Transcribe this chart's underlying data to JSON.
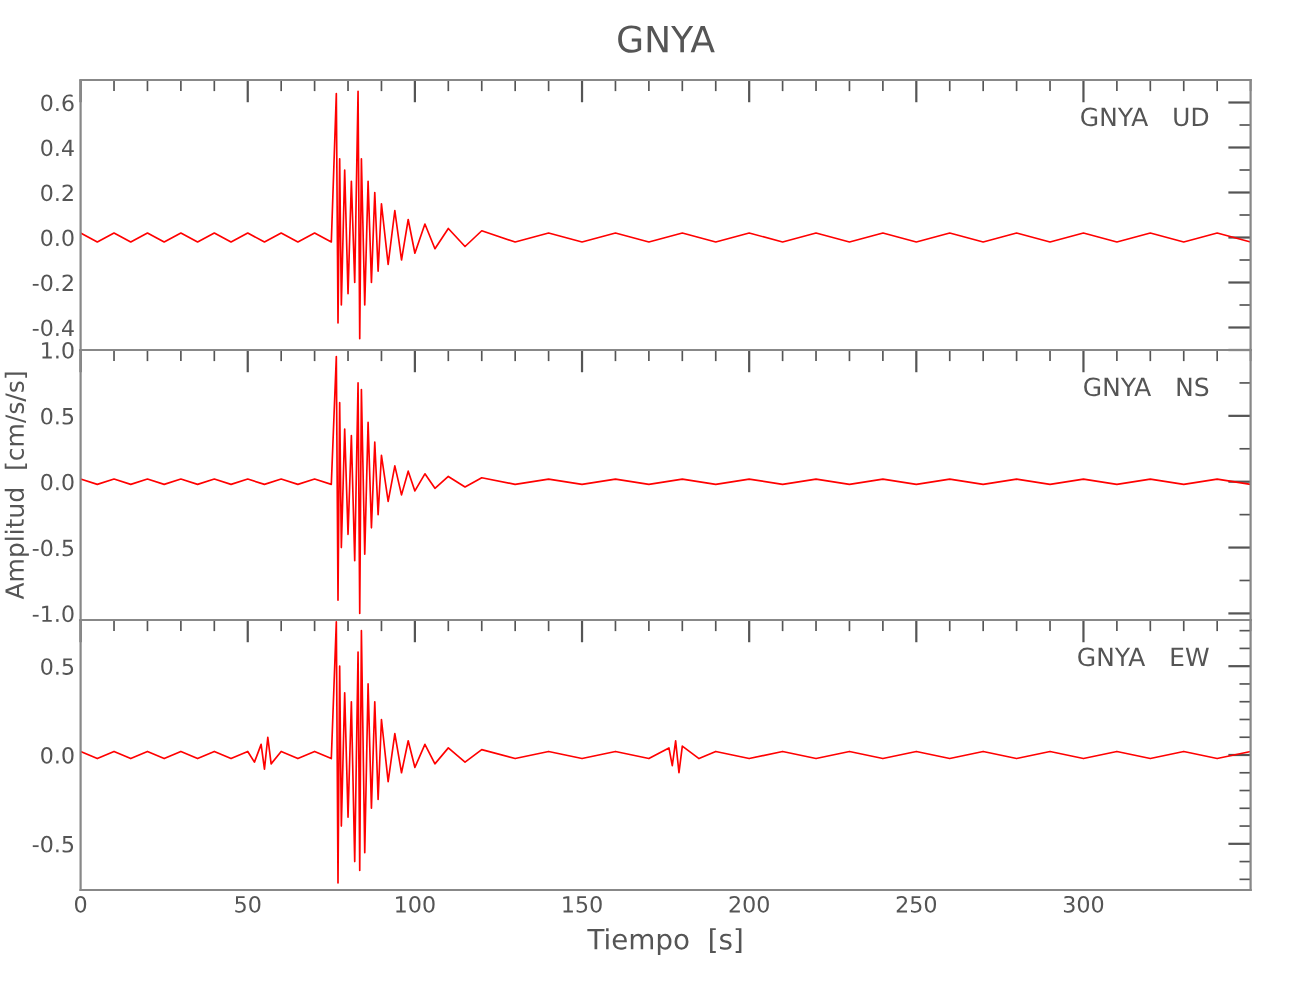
{
  "chart_data": [
    {
      "type": "line",
      "title": "GNYA",
      "annotations": [
        "GNYA   UD"
      ],
      "xlim": [
        0,
        350
      ],
      "xticks": [
        0,
        50,
        100,
        150,
        200,
        250,
        300
      ],
      "ylim": [
        -0.5,
        0.7
      ],
      "yticks": [
        -0.4,
        -0.2,
        {
          "value": 0,
          "label": "0.0"
        },
        0.2,
        0.4,
        0.6
      ],
      "tick_labels": "y",
      "x": [
        0,
        5,
        10,
        15,
        20,
        25,
        30,
        35,
        40,
        45,
        50,
        55,
        60,
        65,
        70,
        75,
        76.5,
        77,
        77.5,
        78,
        79,
        80,
        81,
        82,
        83,
        83.5,
        84,
        85,
        86,
        87,
        88,
        89,
        90,
        92,
        94,
        96,
        98,
        100,
        103,
        106,
        110,
        115,
        120,
        130,
        140,
        150,
        160,
        170,
        180,
        190,
        200,
        210,
        220,
        230,
        240,
        250,
        260,
        270,
        280,
        290,
        300,
        310,
        320,
        330,
        340,
        350
      ],
      "series": [
        {
          "color": "#ff0000",
          "values": [
            0.02,
            -0.02,
            0.02,
            -0.02,
            0.02,
            -0.02,
            0.02,
            -0.02,
            0.02,
            -0.02,
            0.02,
            -0.02,
            0.02,
            -0.02,
            0.02,
            -0.02,
            0.64,
            -0.38,
            0.35,
            -0.3,
            0.3,
            -0.25,
            0.25,
            -0.2,
            0.65,
            -0.45,
            0.35,
            -0.3,
            0.25,
            -0.2,
            0.2,
            -0.15,
            0.15,
            -0.12,
            0.12,
            -0.1,
            0.08,
            -0.07,
            0.06,
            -0.05,
            0.04,
            -0.04,
            0.03,
            -0.02,
            0.02,
            -0.02,
            0.02,
            -0.02,
            0.02,
            -0.02,
            0.02,
            -0.02,
            0.02,
            -0.02,
            0.02,
            -0.02,
            0.02,
            -0.02,
            0.02,
            -0.02,
            0.02,
            -0.02,
            0.02,
            -0.02,
            0.02,
            -0.02
          ]
        }
      ]
    },
    {
      "type": "line",
      "ylabel": "Amplitud  [cm/s/s]",
      "annotations": [
        "GNYA   NS"
      ],
      "xlim": [
        0,
        350
      ],
      "xticks": [
        0,
        50,
        100,
        150,
        200,
        250,
        300
      ],
      "ylim": [
        -1.05,
        1.0
      ],
      "yticks": [
        {
          "value": -1,
          "label": "-1.0"
        },
        -0.5,
        {
          "value": 0,
          "label": "0.0"
        },
        0.5,
        {
          "value": 1,
          "label": "1.0"
        }
      ],
      "tick_labels": "y",
      "x": [
        0,
        5,
        10,
        15,
        20,
        25,
        30,
        35,
        40,
        45,
        50,
        55,
        60,
        65,
        70,
        75,
        76.5,
        77,
        77.5,
        78,
        79,
        80,
        81,
        82,
        83,
        83.5,
        84,
        85,
        86,
        87,
        88,
        89,
        90,
        92,
        94,
        96,
        98,
        100,
        103,
        106,
        110,
        115,
        120,
        130,
        140,
        150,
        160,
        170,
        180,
        190,
        200,
        210,
        220,
        230,
        240,
        250,
        260,
        270,
        280,
        290,
        300,
        310,
        320,
        330,
        340,
        350
      ],
      "series": [
        {
          "color": "#ff0000",
          "values": [
            0.02,
            -0.02,
            0.02,
            -0.02,
            0.02,
            -0.02,
            0.02,
            -0.02,
            0.02,
            -0.02,
            0.02,
            -0.02,
            0.02,
            -0.02,
            0.02,
            -0.02,
            0.95,
            -0.9,
            0.6,
            -0.5,
            0.4,
            -0.4,
            0.35,
            -0.6,
            0.75,
            -1.0,
            0.7,
            -0.55,
            0.45,
            -0.35,
            0.3,
            -0.25,
            0.2,
            -0.15,
            0.12,
            -0.1,
            0.08,
            -0.07,
            0.06,
            -0.05,
            0.04,
            -0.04,
            0.03,
            -0.02,
            0.02,
            -0.02,
            0.02,
            -0.02,
            0.02,
            -0.02,
            0.02,
            -0.02,
            0.02,
            -0.02,
            0.02,
            -0.02,
            0.02,
            -0.02,
            0.02,
            -0.02,
            0.02,
            -0.02,
            0.02,
            -0.02,
            0.02,
            -0.02
          ]
        }
      ]
    },
    {
      "type": "line",
      "xlabel": "Tiempo  [s]",
      "annotations": [
        "GNYA   EW"
      ],
      "xlim": [
        0,
        350
      ],
      "xticks": [
        0,
        50,
        100,
        150,
        200,
        250,
        300
      ],
      "ylim": [
        -0.76,
        0.76
      ],
      "yticks": [
        -0.5,
        {
          "value": 0,
          "label": "0.0"
        },
        0.5
      ],
      "x": [
        0,
        5,
        10,
        15,
        20,
        25,
        30,
        35,
        40,
        45,
        50,
        52,
        54,
        55,
        56,
        57,
        60,
        65,
        70,
        75,
        76.5,
        77,
        77.5,
        78,
        79,
        80,
        81,
        82,
        83,
        83.5,
        84,
        85,
        86,
        87,
        88,
        89,
        90,
        92,
        94,
        96,
        98,
        100,
        103,
        106,
        110,
        115,
        120,
        130,
        140,
        150,
        160,
        170,
        176,
        177,
        178,
        179,
        180,
        185,
        190,
        200,
        210,
        220,
        230,
        240,
        250,
        260,
        270,
        280,
        290,
        300,
        310,
        320,
        330,
        340,
        350
      ],
      "series": [
        {
          "color": "#ff0000",
          "values": [
            0.02,
            -0.02,
            0.02,
            -0.02,
            0.02,
            -0.02,
            0.02,
            -0.02,
            0.02,
            -0.02,
            0.02,
            -0.04,
            0.06,
            -0.08,
            0.1,
            -0.05,
            0.02,
            -0.02,
            0.02,
            -0.02,
            0.75,
            -0.72,
            0.5,
            -0.4,
            0.35,
            -0.35,
            0.3,
            -0.6,
            0.58,
            -0.65,
            0.7,
            -0.55,
            0.4,
            -0.3,
            0.3,
            -0.25,
            0.2,
            -0.15,
            0.12,
            -0.1,
            0.08,
            -0.07,
            0.06,
            -0.05,
            0.04,
            -0.04,
            0.03,
            -0.02,
            0.02,
            -0.02,
            0.02,
            -0.02,
            0.04,
            -0.06,
            0.08,
            -0.1,
            0.05,
            -0.02,
            0.02,
            -0.02,
            0.02,
            -0.02,
            0.02,
            -0.02,
            0.02,
            -0.02,
            0.02,
            -0.02,
            0.02,
            -0.02,
            0.02,
            -0.02,
            0.02,
            -0.02,
            0.02
          ]
        }
      ]
    }
  ]
}
